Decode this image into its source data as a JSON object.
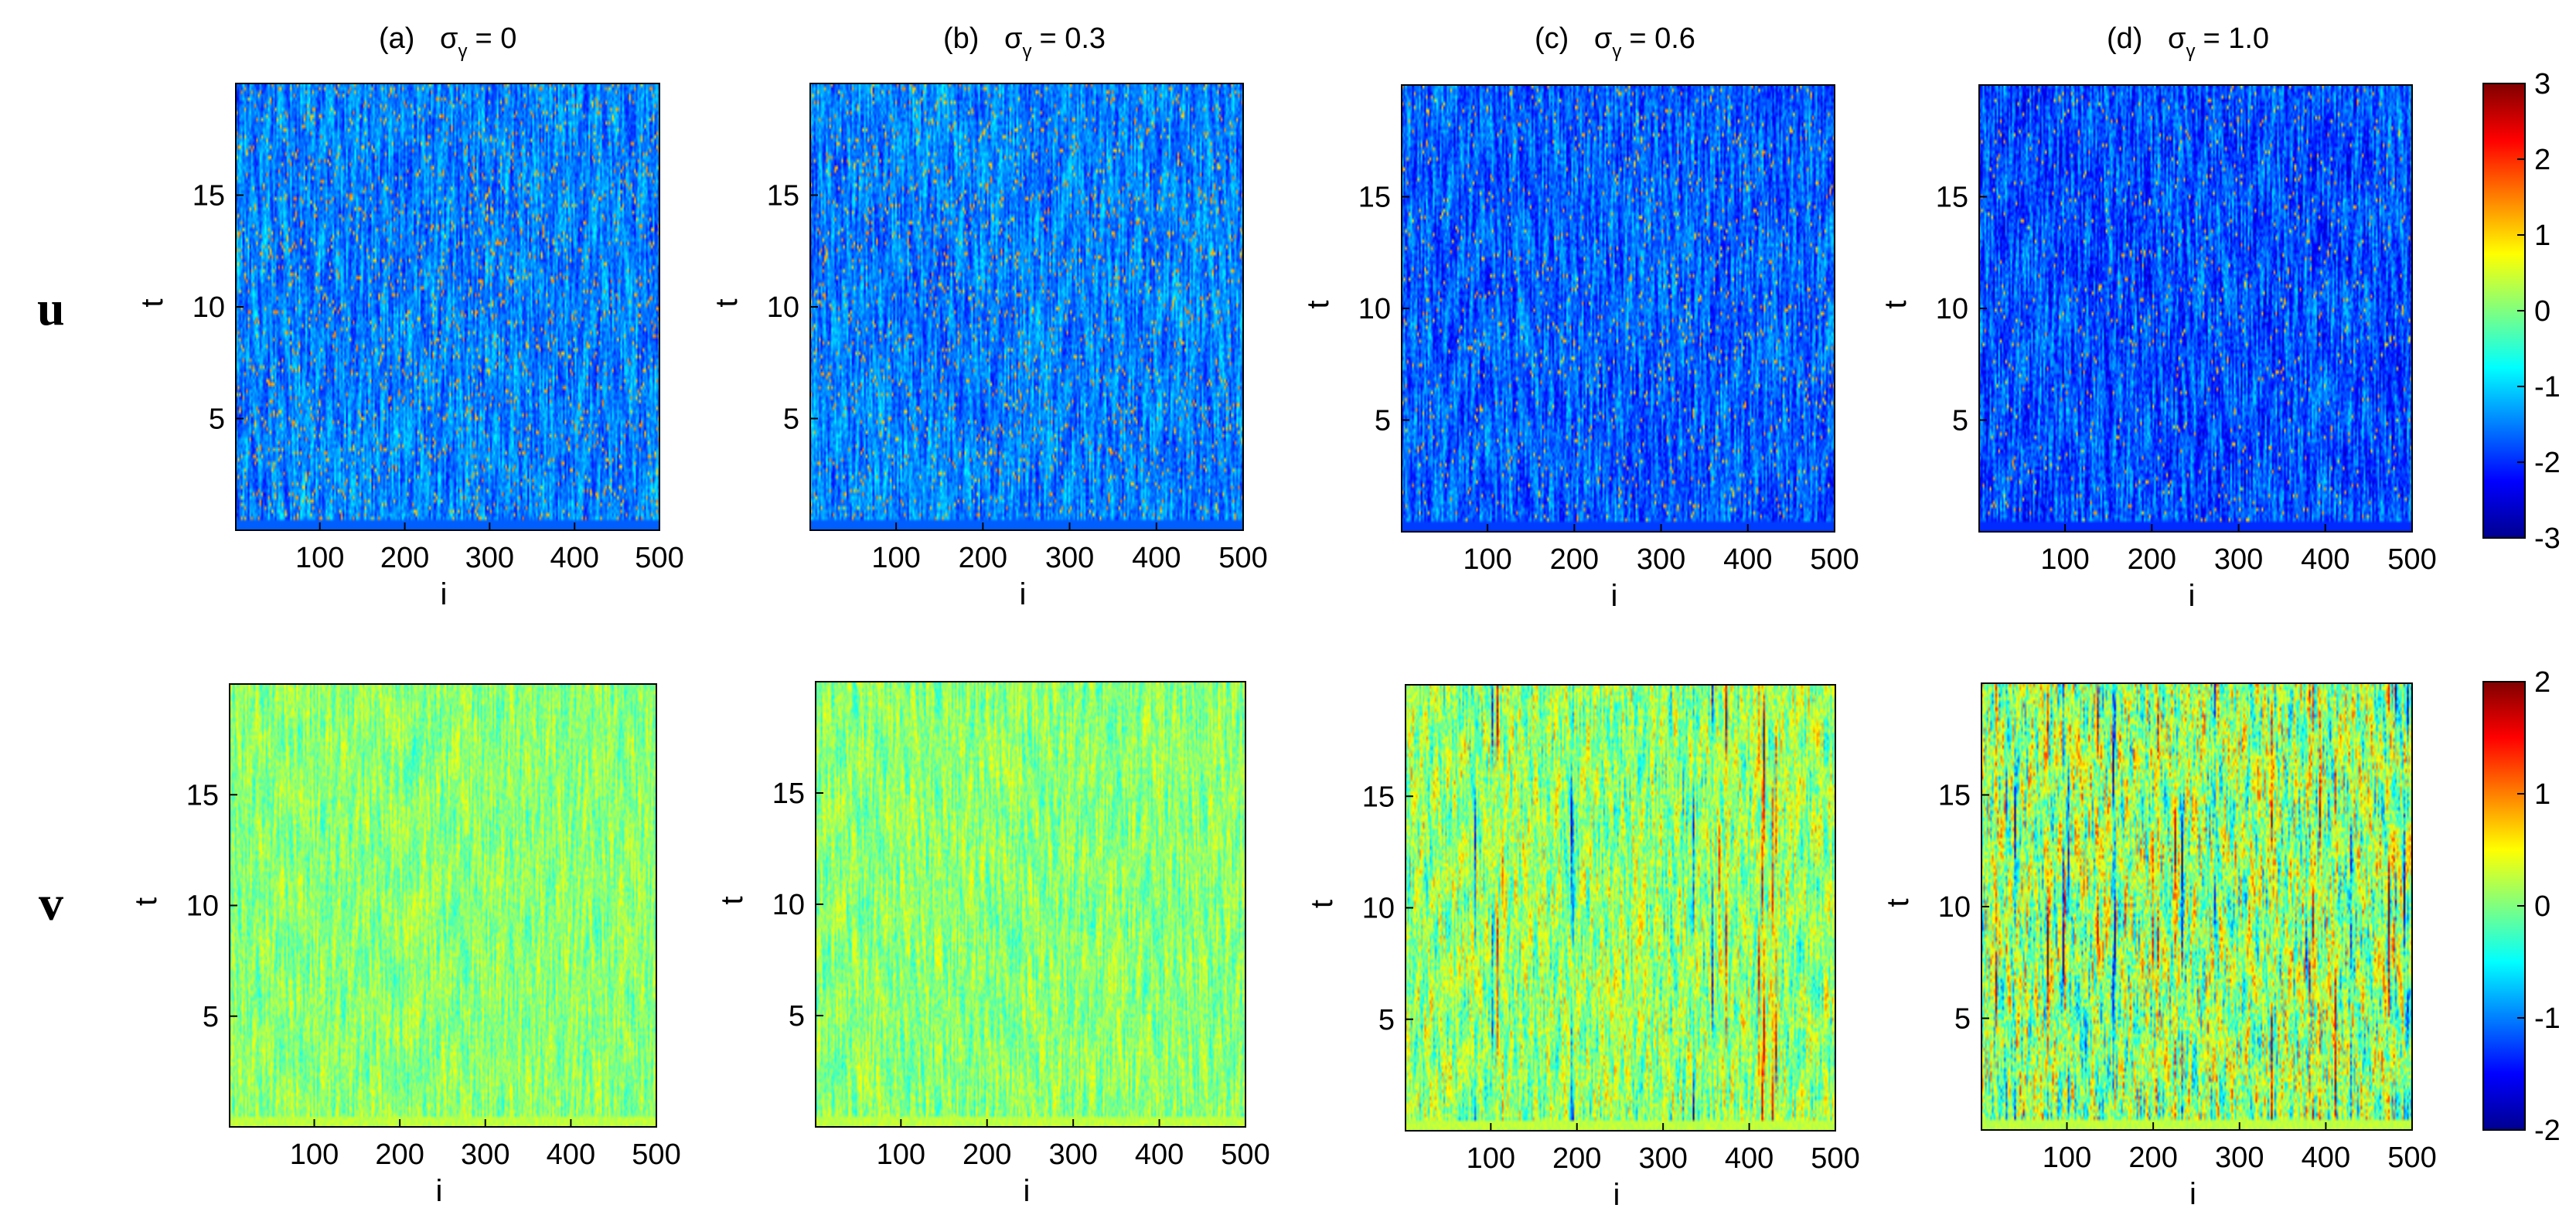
{
  "colormap": "jet",
  "colormap_stops": [
    "#00008f",
    "#0000ff",
    "#00ffff",
    "#ffff00",
    "#ff0000",
    "#800000"
  ],
  "row_labels": [
    "u",
    "v"
  ],
  "panel_titles": [
    {
      "prefix": "(a)",
      "value": "= 0"
    },
    {
      "prefix": "(b)",
      "value": "= 0.3"
    },
    {
      "prefix": "(c)",
      "value": "= 0.6"
    },
    {
      "prefix": "(d)",
      "value": "= 1.0"
    }
  ],
  "sigma_symbol": "σ",
  "sigma_subscript": "γ",
  "xlabel": "i",
  "ylabel": "t",
  "x_ticks": [
    "100",
    "200",
    "300",
    "400",
    "500"
  ],
  "y_ticks": [
    "5",
    "10",
    "15"
  ],
  "colorbars": [
    {
      "row": "u",
      "min": -3,
      "max": 3,
      "ticks": [
        "3",
        "2",
        "1",
        "0",
        "-1",
        "-2",
        "-3"
      ]
    },
    {
      "row": "v",
      "min": -2,
      "max": 2,
      "ticks": [
        "2",
        "1",
        "0",
        "-1",
        "-2"
      ]
    }
  ],
  "chart_data": [
    {
      "type": "heatmap",
      "row": "u",
      "panel": "(a)",
      "sigma_gamma": 0,
      "xlim": [
        1,
        500
      ],
      "ylim": [
        0,
        20
      ],
      "xlabel": "i",
      "ylabel": "t",
      "clim": [
        -3,
        3
      ],
      "mean": -1.5,
      "spread": 0.45,
      "peak": 1.6,
      "spike_density": 0.12
    },
    {
      "type": "heatmap",
      "row": "u",
      "panel": "(b)",
      "sigma_gamma": 0.3,
      "xlim": [
        1,
        500
      ],
      "ylim": [
        0,
        20
      ],
      "xlabel": "i",
      "ylabel": "t",
      "clim": [
        -3,
        3
      ],
      "mean": -1.5,
      "spread": 0.45,
      "peak": 1.6,
      "spike_density": 0.11
    },
    {
      "type": "heatmap",
      "row": "u",
      "panel": "(c)",
      "sigma_gamma": 0.6,
      "xlim": [
        1,
        500
      ],
      "ylim": [
        0,
        20
      ],
      "xlabel": "i",
      "ylabel": "t",
      "clim": [
        -3,
        3
      ],
      "mean": -1.7,
      "spread": 0.5,
      "peak": 1.5,
      "spike_density": 0.07
    },
    {
      "type": "heatmap",
      "row": "u",
      "panel": "(d)",
      "sigma_gamma": 1.0,
      "xlim": [
        1,
        500
      ],
      "ylim": [
        0,
        20
      ],
      "xlabel": "i",
      "ylabel": "t",
      "clim": [
        -3,
        3
      ],
      "mean": -1.8,
      "spread": 0.55,
      "peak": 1.5,
      "spike_density": 0.05
    },
    {
      "type": "heatmap",
      "row": "v",
      "panel": "(a)",
      "sigma_gamma": 0,
      "xlim": [
        1,
        500
      ],
      "ylim": [
        0,
        20
      ],
      "xlabel": "i",
      "ylabel": "t",
      "clim": [
        -2,
        2
      ],
      "mean": 0.05,
      "spread": 0.3,
      "peak": 0.0,
      "spike_density": 0.0
    },
    {
      "type": "heatmap",
      "row": "v",
      "panel": "(b)",
      "sigma_gamma": 0.3,
      "xlim": [
        1,
        500
      ],
      "ylim": [
        0,
        20
      ],
      "xlabel": "i",
      "ylabel": "t",
      "clim": [
        -2,
        2
      ],
      "mean": 0.05,
      "spread": 0.32,
      "peak": 0.0,
      "spike_density": 0.0
    },
    {
      "type": "heatmap",
      "row": "v",
      "panel": "(c)",
      "sigma_gamma": 0.6,
      "xlim": [
        1,
        500
      ],
      "ylim": [
        0,
        20
      ],
      "xlabel": "i",
      "ylabel": "t",
      "clim": [
        -2,
        2
      ],
      "mean": 0.1,
      "spread": 0.5,
      "peak": 1.6,
      "spike_density": 0.03
    },
    {
      "type": "heatmap",
      "row": "v",
      "panel": "(d)",
      "sigma_gamma": 1.0,
      "xlim": [
        1,
        500
      ],
      "ylim": [
        0,
        20
      ],
      "xlabel": "i",
      "ylabel": "t",
      "clim": [
        -2,
        2
      ],
      "mean": 0.1,
      "spread": 0.7,
      "peak": 1.8,
      "spike_density": 0.06
    }
  ]
}
